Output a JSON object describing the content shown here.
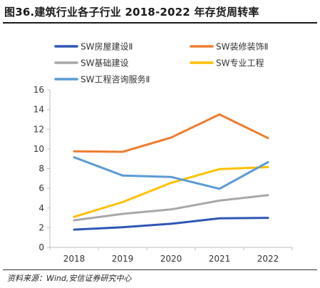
{
  "header": {
    "title": "图36.建筑行业各子行业 2018-2022 年存货周转率"
  },
  "footer": {
    "source": "资料来源：Wind,安信证券研究中心"
  },
  "chart_data": {
    "type": "line",
    "title": "",
    "xlabel": "",
    "ylabel": "",
    "x": [
      "2018",
      "2019",
      "2020",
      "2021",
      "2022"
    ],
    "ylim": [
      0,
      16
    ],
    "yticks": [
      0,
      2,
      4,
      6,
      8,
      10,
      12,
      14,
      16
    ],
    "grid": false,
    "legend_position": "top",
    "series": [
      {
        "name": "SW房屋建设Ⅱ",
        "color": "#2f55b5",
        "values": [
          1.8,
          2.05,
          2.4,
          2.95,
          3.0
        ]
      },
      {
        "name": "SW装修装饰Ⅱ",
        "color": "#ee7d31",
        "values": [
          9.75,
          9.7,
          11.15,
          13.5,
          11.1
        ]
      },
      {
        "name": "SW基础建设",
        "color": "#a8a8a8",
        "values": [
          2.75,
          3.4,
          3.85,
          4.75,
          5.3
        ]
      },
      {
        "name": "SW专业工程",
        "color": "#ffc000",
        "values": [
          3.1,
          4.6,
          6.55,
          7.95,
          8.15
        ]
      },
      {
        "name": "SW工程咨询服务Ⅱ",
        "color": "#5b9bd5",
        "values": [
          9.15,
          7.3,
          7.15,
          5.95,
          8.65
        ]
      }
    ]
  }
}
